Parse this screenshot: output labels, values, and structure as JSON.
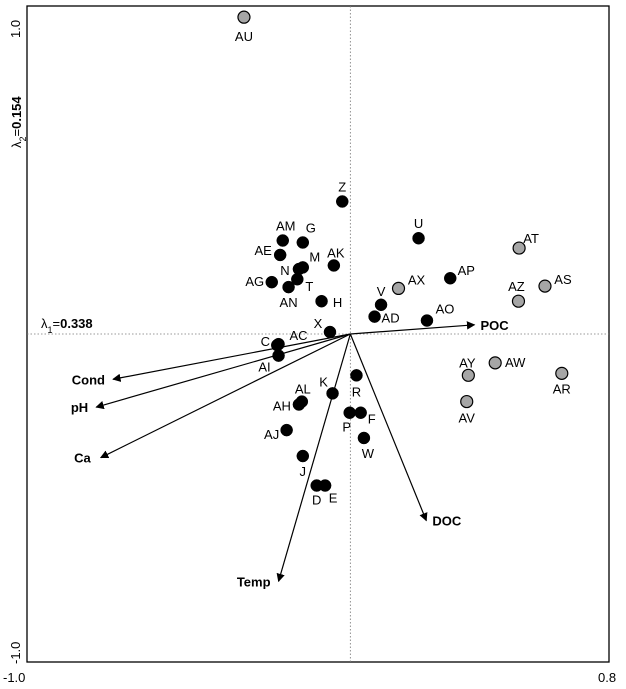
{
  "chart_data": {
    "type": "scatter",
    "title": "",
    "xlabel": "",
    "ylabel": "",
    "xlim": [
      -1.0,
      0.8
    ],
    "ylim": [
      -1.0,
      1.0
    ],
    "x_tick_labels": [
      "-1.0",
      "0.8"
    ],
    "y_tick_labels": [
      "1.0",
      "-1.0"
    ],
    "axis1": {
      "prefix": "λ",
      "sub": "1",
      "eq": "=",
      "value": "0.338"
    },
    "axis2": {
      "prefix": "λ",
      "sub": "2",
      "eq": "=",
      "value": "0.154"
    },
    "colors": {
      "group_dark": "#000000",
      "group_light": "#a6a6a6"
    },
    "points": [
      {
        "label": "AU",
        "x": -0.329,
        "y": 0.966,
        "group": "light"
      },
      {
        "label": "Z",
        "x": -0.025,
        "y": 0.404,
        "group": "dark"
      },
      {
        "label": "U",
        "x": 0.211,
        "y": 0.292,
        "group": "dark"
      },
      {
        "label": "AT",
        "x": 0.522,
        "y": 0.262,
        "group": "light"
      },
      {
        "label": "AM",
        "x": -0.209,
        "y": 0.285,
        "group": "dark"
      },
      {
        "label": "G",
        "x": -0.147,
        "y": 0.279,
        "group": "dark"
      },
      {
        "label": "AE",
        "x": -0.217,
        "y": 0.241,
        "group": "dark"
      },
      {
        "label": "M",
        "x": -0.147,
        "y": 0.203,
        "group": "dark"
      },
      {
        "label": "N",
        "x": -0.159,
        "y": 0.198,
        "group": "dark"
      },
      {
        "label": "AK",
        "x": -0.051,
        "y": 0.209,
        "group": "dark"
      },
      {
        "label": "T",
        "x": -0.164,
        "y": 0.167,
        "group": "dark"
      },
      {
        "label": "AG",
        "x": -0.243,
        "y": 0.158,
        "group": "dark"
      },
      {
        "label": "AN",
        "x": -0.191,
        "y": 0.143,
        "group": "dark"
      },
      {
        "label": "H",
        "x": -0.089,
        "y": 0.1,
        "group": "dark"
      },
      {
        "label": "AX",
        "x": 0.149,
        "y": 0.139,
        "group": "light"
      },
      {
        "label": "AP",
        "x": 0.309,
        "y": 0.17,
        "group": "dark"
      },
      {
        "label": "AS",
        "x": 0.602,
        "y": 0.146,
        "group": "light"
      },
      {
        "label": "AZ",
        "x": 0.52,
        "y": 0.1,
        "group": "light"
      },
      {
        "label": "V",
        "x": 0.095,
        "y": 0.089,
        "group": "dark"
      },
      {
        "label": "AD",
        "x": 0.075,
        "y": 0.053,
        "group": "dark"
      },
      {
        "label": "AO",
        "x": 0.237,
        "y": 0.041,
        "group": "dark"
      },
      {
        "label": "X",
        "x": -0.063,
        "y": 0.006,
        "group": "dark"
      },
      {
        "label": "AC",
        "x": -0.222,
        "y": -0.031,
        "group": "dark"
      },
      {
        "label": "C",
        "x": -0.226,
        "y": -0.034,
        "group": "dark"
      },
      {
        "label": "AI",
        "x": -0.222,
        "y": -0.066,
        "group": "dark"
      },
      {
        "label": "AY",
        "x": 0.365,
        "y": -0.126,
        "group": "light"
      },
      {
        "label": "AW",
        "x": 0.448,
        "y": -0.088,
        "group": "light"
      },
      {
        "label": "AR",
        "x": 0.654,
        "y": -0.12,
        "group": "light"
      },
      {
        "label": "R",
        "x": 0.019,
        "y": -0.126,
        "group": "dark"
      },
      {
        "label": "K",
        "x": -0.055,
        "y": -0.181,
        "group": "dark"
      },
      {
        "label": "AL",
        "x": -0.15,
        "y": -0.206,
        "group": "dark"
      },
      {
        "label": "AH",
        "x": -0.159,
        "y": -0.215,
        "group": "dark"
      },
      {
        "label": "AV",
        "x": 0.36,
        "y": -0.206,
        "group": "light"
      },
      {
        "label": "P",
        "x": -0.002,
        "y": -0.24,
        "group": "dark"
      },
      {
        "label": "F",
        "x": 0.032,
        "y": -0.24,
        "group": "dark"
      },
      {
        "label": "AJ",
        "x": -0.197,
        "y": -0.293,
        "group": "dark"
      },
      {
        "label": "W",
        "x": 0.042,
        "y": -0.317,
        "group": "dark"
      },
      {
        "label": "J",
        "x": -0.147,
        "y": -0.372,
        "group": "dark"
      },
      {
        "label": "D",
        "x": -0.104,
        "y": -0.462,
        "group": "dark"
      },
      {
        "label": "E",
        "x": -0.078,
        "y": -0.462,
        "group": "dark"
      }
    ],
    "vectors": [
      {
        "label": "POC",
        "x": 0.384,
        "y": 0.028
      },
      {
        "label": "Cond",
        "x": -0.734,
        "y": -0.138
      },
      {
        "label": "pH",
        "x": -0.786,
        "y": -0.223
      },
      {
        "label": "Ca",
        "x": -0.772,
        "y": -0.377
      },
      {
        "label": "DOC",
        "x": 0.235,
        "y": -0.569
      },
      {
        "label": "Temp",
        "x": -0.222,
        "y": -0.754
      }
    ]
  }
}
